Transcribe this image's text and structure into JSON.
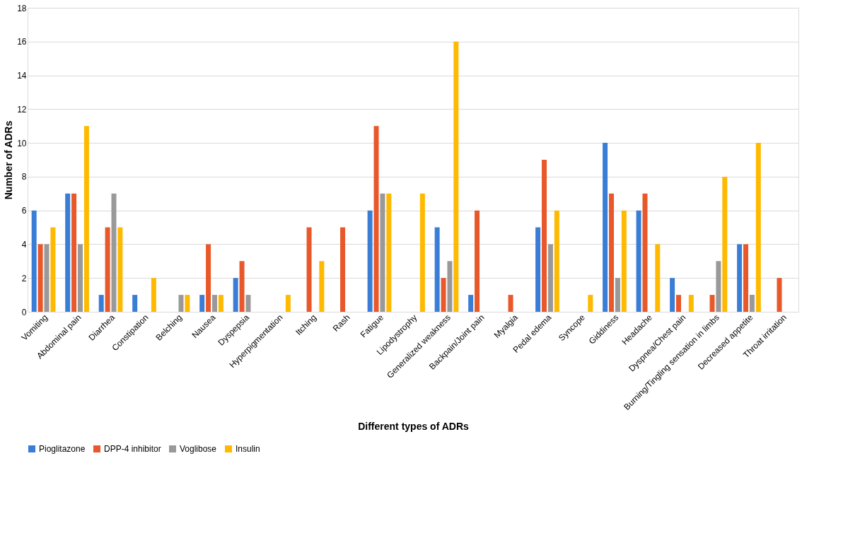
{
  "chart_data": {
    "type": "bar",
    "xlabel": "Different types of ADRs",
    "ylabel": "Number of ADRs",
    "categories": [
      "Vomiting",
      "Abdominal pain",
      "Diarrhea",
      "Constipation",
      "Belching",
      "Nausea",
      "Dyspepsia",
      "Hyperpigmentation",
      "Itching",
      "Rash",
      "Fatigue",
      "Lipodystrophy",
      "Generalized weakness",
      "Backpain/Joint pain",
      "Myalgia",
      "Pedal edema",
      "Syncope",
      "Giddiness",
      "Headache",
      "Dyspnea/Chest pain",
      "Burning/Tingling sensation in limbs",
      "Decreased appetite",
      "Throat irritation"
    ],
    "series": [
      {
        "name": "Pioglitazone",
        "color": "#3a7dd6",
        "values": [
          6,
          7,
          1,
          1,
          0,
          1,
          2,
          0,
          0,
          0,
          6,
          0,
          5,
          1,
          0,
          5,
          0,
          10,
          6,
          2,
          0,
          4,
          0
        ]
      },
      {
        "name": "DPP-4 inhibitor",
        "color": "#e8582a",
        "values": [
          4,
          7,
          5,
          0,
          0,
          4,
          3,
          0,
          5,
          5,
          11,
          0,
          2,
          6,
          1,
          9,
          0,
          7,
          7,
          1,
          1,
          4,
          2
        ]
      },
      {
        "name": "Voglibose",
        "color": "#999999",
        "values": [
          4,
          4,
          7,
          0,
          1,
          1,
          1,
          0,
          0,
          0,
          7,
          0,
          3,
          0,
          0,
          4,
          0,
          2,
          0,
          0,
          3,
          1,
          0
        ]
      },
      {
        "name": "Insulin",
        "color": "#ffb900",
        "values": [
          5,
          11,
          5,
          2,
          1,
          1,
          0,
          1,
          3,
          0,
          7,
          7,
          16,
          0,
          0,
          6,
          1,
          6,
          4,
          1,
          8,
          10,
          0
        ]
      }
    ],
    "ylim": [
      0,
      18
    ],
    "yticks": [
      0,
      2,
      4,
      6,
      8,
      10,
      12,
      14,
      16,
      18
    ],
    "grid": "y",
    "legend": "bottom"
  }
}
